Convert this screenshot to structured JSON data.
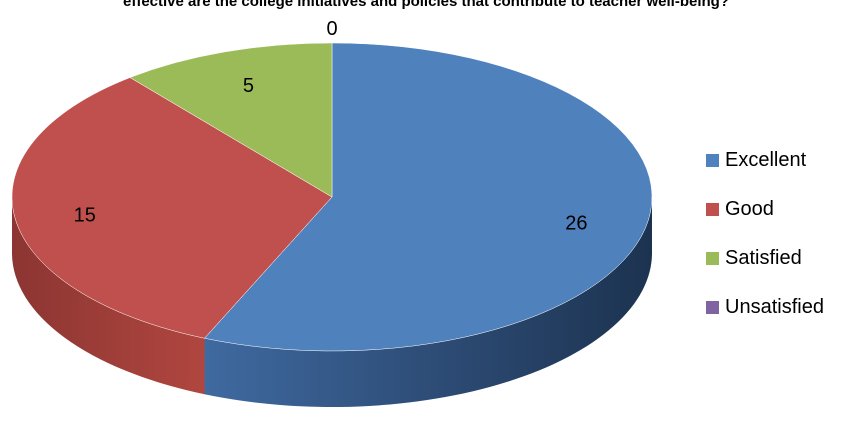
{
  "chart_data": {
    "type": "pie",
    "title": "effective are the college initiatives and policies that contribute to teacher well-being?",
    "categories": [
      "Excellent",
      "Good",
      "Satisfied",
      "Unsatisfied"
    ],
    "values": [
      26,
      15,
      5,
      0
    ],
    "colors": [
      "#4F81BD",
      "#C0504D",
      "#9BBB59",
      "#8064A2"
    ],
    "legend_position": "right",
    "three_d": true
  }
}
